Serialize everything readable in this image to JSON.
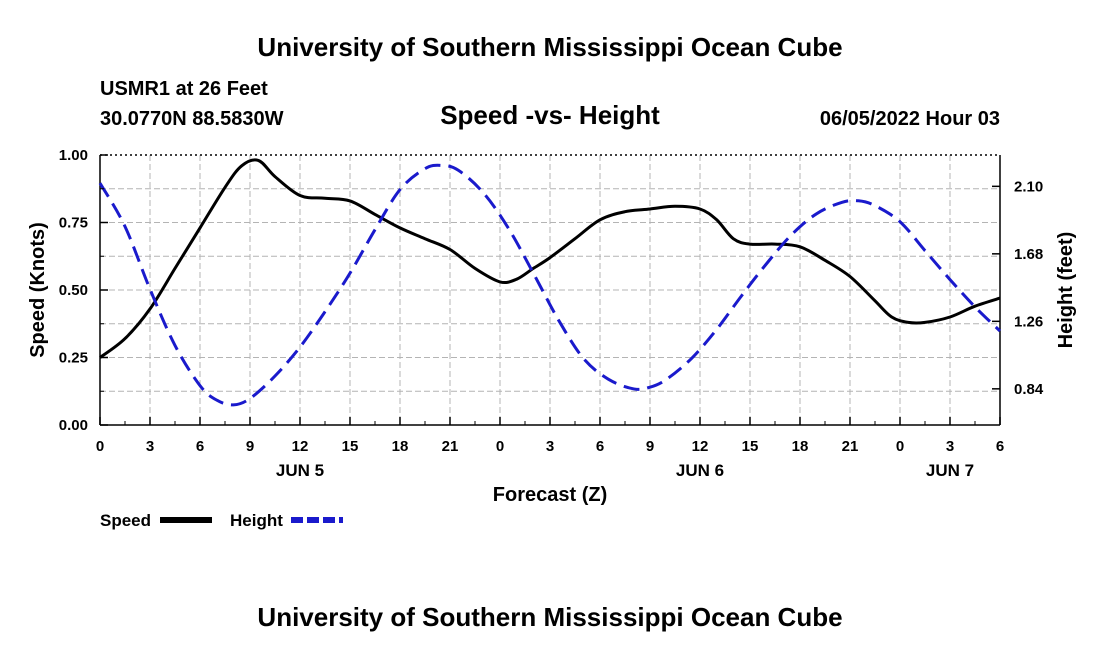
{
  "page": {
    "header_title": "University of Southern Mississippi Ocean Cube",
    "footer_title": "University of Southern Mississippi Ocean Cube",
    "station": "USMR1 at 26 Feet",
    "coordinates": "30.0770N  88.5830W",
    "date_hour": "06/05/2022 Hour 03"
  },
  "chart_data": {
    "type": "line",
    "title": "Speed -vs- Height",
    "xlabel": "Forecast (Z)",
    "ylabel_left": "Speed (Knots)",
    "ylabel_right": "Height (feet)",
    "x_unit": "hours from 00Z Jun 5",
    "xlim": [
      0,
      54
    ],
    "x_ticks": [
      {
        "x": 0,
        "label": "0"
      },
      {
        "x": 3,
        "label": "3"
      },
      {
        "x": 6,
        "label": "6"
      },
      {
        "x": 9,
        "label": "9"
      },
      {
        "x": 12,
        "label": "12"
      },
      {
        "x": 15,
        "label": "15"
      },
      {
        "x": 18,
        "label": "18"
      },
      {
        "x": 21,
        "label": "21"
      },
      {
        "x": 24,
        "label": "0"
      },
      {
        "x": 27,
        "label": "3"
      },
      {
        "x": 30,
        "label": "6"
      },
      {
        "x": 33,
        "label": "9"
      },
      {
        "x": 36,
        "label": "12"
      },
      {
        "x": 39,
        "label": "15"
      },
      {
        "x": 42,
        "label": "18"
      },
      {
        "x": 45,
        "label": "21"
      },
      {
        "x": 48,
        "label": "0"
      },
      {
        "x": 51,
        "label": "3"
      },
      {
        "x": 54,
        "label": "6"
      }
    ],
    "date_labels": [
      {
        "x": 12,
        "label": "JUN 5"
      },
      {
        "x": 36,
        "label": "JUN 6"
      },
      {
        "x": 51,
        "label": "JUN 7"
      }
    ],
    "ylim_left": [
      0,
      1.0
    ],
    "left_ticks": [
      "0.00",
      "0.25",
      "0.50",
      "0.75",
      "1.00"
    ],
    "ylim_right": [
      0.615,
      2.295
    ],
    "right_ticks": [
      "0.84",
      "1.26",
      "1.68",
      "2.10"
    ],
    "grid": true,
    "series": [
      {
        "name": "Speed",
        "axis": "left",
        "color": "#000000",
        "dash": "solid",
        "x": [
          0,
          1.5,
          3,
          4.5,
          6,
          7.5,
          8.5,
          9.5,
          10.5,
          12,
          13.5,
          15,
          16.5,
          18,
          19.5,
          21,
          22.5,
          24,
          25,
          26,
          27,
          28.5,
          30,
          31.5,
          33,
          34.5,
          36,
          37,
          38,
          39,
          40.5,
          42,
          43.5,
          45,
          46.5,
          47.5,
          48.5,
          49.5,
          51,
          52.5,
          54
        ],
        "values": [
          0.25,
          0.32,
          0.43,
          0.58,
          0.73,
          0.88,
          0.96,
          0.98,
          0.92,
          0.85,
          0.84,
          0.83,
          0.78,
          0.73,
          0.69,
          0.65,
          0.58,
          0.53,
          0.54,
          0.58,
          0.62,
          0.69,
          0.76,
          0.79,
          0.8,
          0.81,
          0.8,
          0.76,
          0.69,
          0.67,
          0.67,
          0.66,
          0.61,
          0.55,
          0.46,
          0.4,
          0.38,
          0.38,
          0.4,
          0.44,
          0.47
        ]
      },
      {
        "name": "Height",
        "axis": "right",
        "color": "#1a1acc",
        "dash": "dashed",
        "x": [
          0,
          1.5,
          3,
          4.5,
          6,
          7,
          8,
          9,
          10.5,
          12,
          13.5,
          15,
          16.5,
          18,
          19.5,
          20.5,
          21.5,
          23,
          24.5,
          26,
          27.5,
          29,
          30.5,
          32,
          33,
          34,
          35.5,
          37,
          38.5,
          40,
          41.5,
          43,
          44.5,
          45.5,
          46.5,
          48,
          49.5,
          51,
          52.5,
          54
        ],
        "values": [
          2.12,
          1.85,
          1.46,
          1.11,
          0.86,
          0.77,
          0.74,
          0.78,
          0.92,
          1.1,
          1.32,
          1.56,
          1.83,
          2.08,
          2.21,
          2.23,
          2.2,
          2.06,
          1.84,
          1.56,
          1.27,
          1.03,
          0.9,
          0.84,
          0.85,
          0.9,
          1.03,
          1.21,
          1.42,
          1.62,
          1.8,
          1.93,
          2.0,
          2.01,
          1.98,
          1.88,
          1.7,
          1.52,
          1.35,
          1.2
        ]
      }
    ],
    "legend": [
      {
        "label": "Speed",
        "color": "#000000",
        "dash": "solid"
      },
      {
        "label": "Height",
        "color": "#1a1acc",
        "dash": "dashed"
      }
    ],
    "legend_position": "bottom-left"
  }
}
